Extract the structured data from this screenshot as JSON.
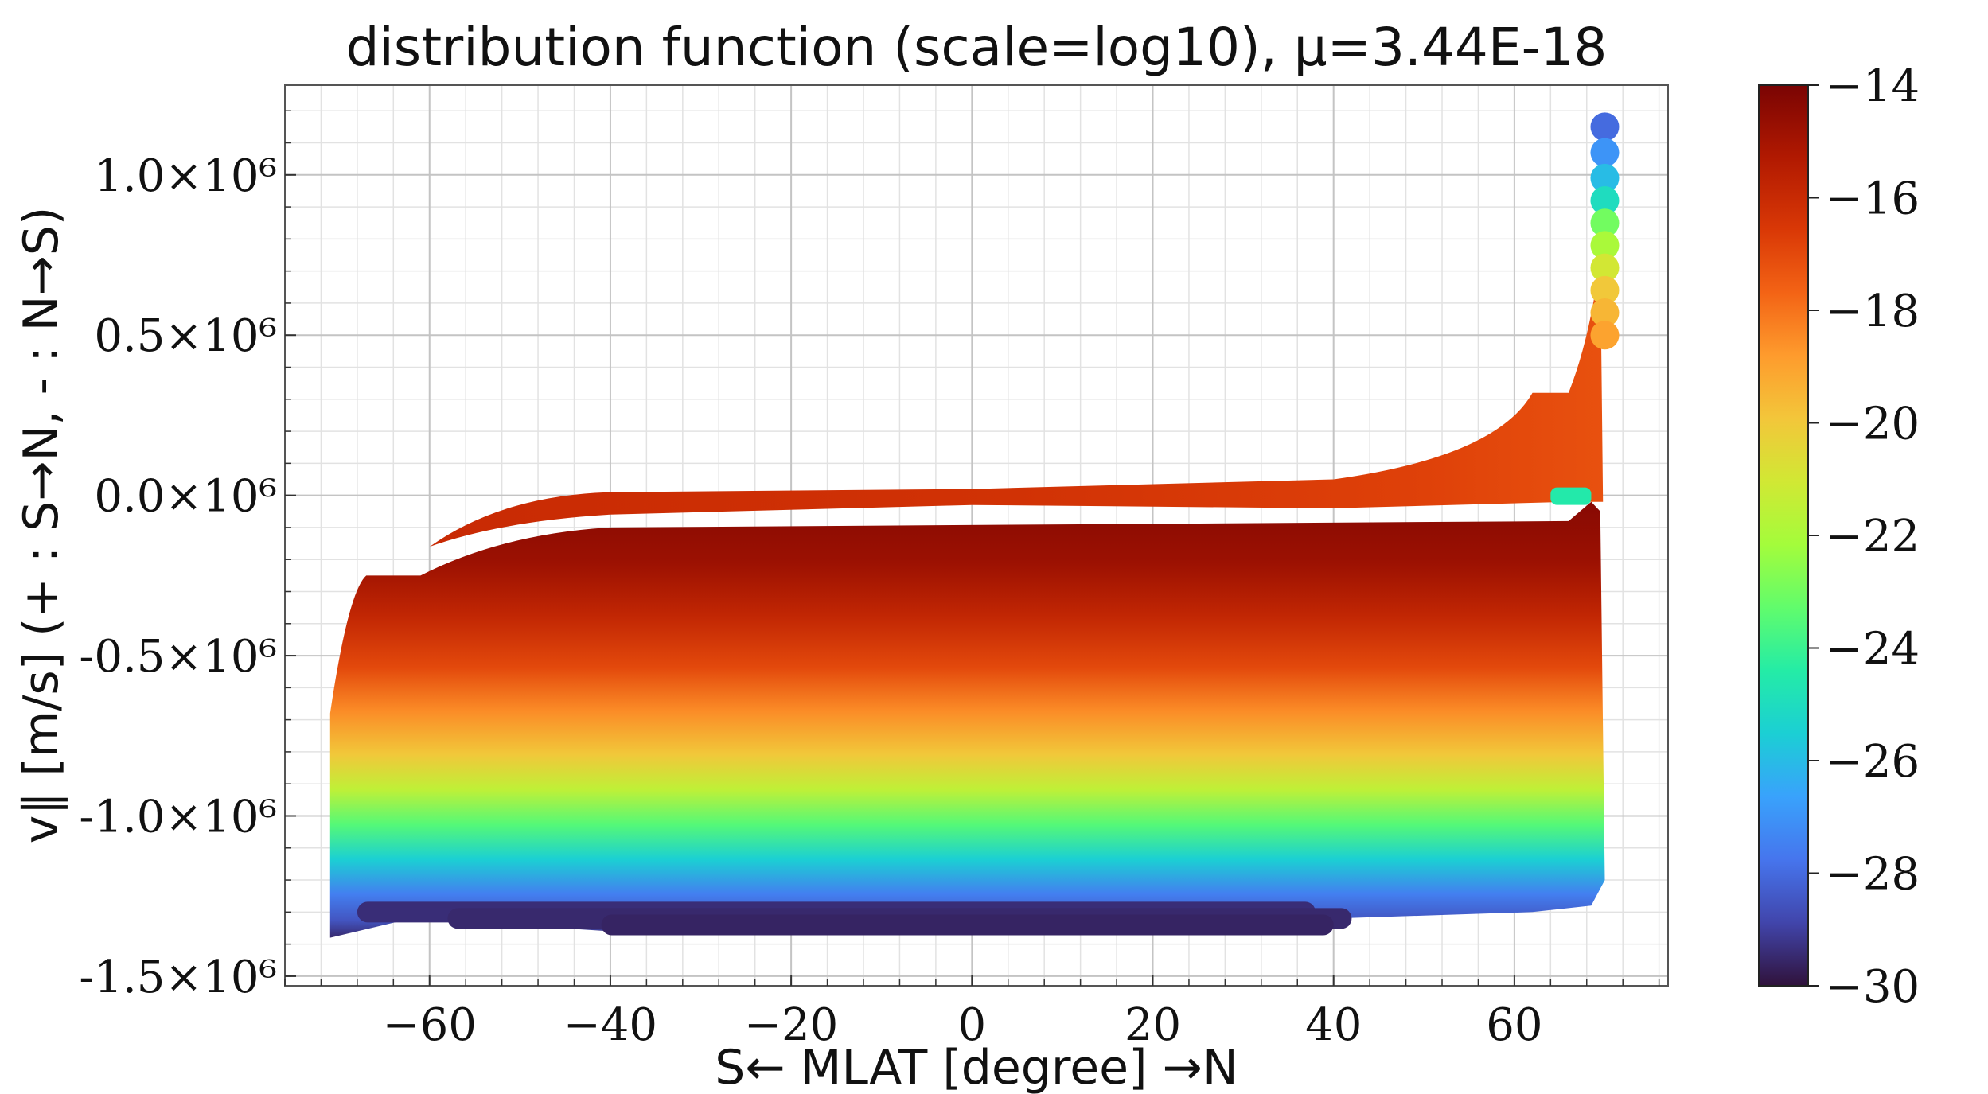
{
  "chart_data": {
    "type": "scatter",
    "title": "distribution function (scale=log10), μ=3.44E-18",
    "xlabel": "S← MLAT [degree] →N",
    "ylabel": "v∥ [m/s] (+ : S→N, - : N→S)",
    "xlim": [
      -76,
      77
    ],
    "ylim": [
      -1.53,
      1.28
    ],
    "y_unit_suffix": "×10⁶",
    "x_ticks": [
      -60,
      -40,
      -20,
      0,
      20,
      40,
      60
    ],
    "x_tick_labels": [
      "−60",
      "−40",
      "−20",
      "0",
      "20",
      "40",
      "60"
    ],
    "y_ticks": [
      -1.5,
      -1.0,
      -0.5,
      0.0,
      0.5,
      1.0
    ],
    "y_tick_labels": [
      "-1.5×10⁶",
      "-1.0×10⁶",
      "-0.5×10⁶",
      "0.0×10⁶",
      "0.5×10⁶",
      "1.0×10⁶"
    ],
    "grid": true,
    "colorbar": {
      "label": "",
      "range": [
        -30,
        -14
      ],
      "ticks": [
        -14,
        -16,
        -18,
        -20,
        -22,
        -24,
        -26,
        -28,
        -30
      ],
      "tick_labels": [
        "−14",
        "−16",
        "−18",
        "−20",
        "−22",
        "−24",
        "−26",
        "−28",
        "−30"
      ],
      "colormap": "turbo"
    },
    "region": {
      "description_values": {
        "mlat_range": [
          -71,
          70
        ],
        "v_min_band": -1.35,
        "v_max_lower_band": -0.1,
        "upper_band_top_at_zero": 0.02,
        "max_f": -14.2,
        "min_f": -29.5
      },
      "tail_points": [
        {
          "mlat": 70,
          "v": 1.15,
          "f": -28
        },
        {
          "mlat": 70,
          "v": 1.07,
          "f": -27
        },
        {
          "mlat": 70,
          "v": 0.99,
          "f": -26
        },
        {
          "mlat": 70,
          "v": 0.92,
          "f": -25
        },
        {
          "mlat": 70,
          "v": 0.85,
          "f": -23
        },
        {
          "mlat": 70,
          "v": 0.78,
          "f": -22
        },
        {
          "mlat": 70,
          "v": 0.71,
          "f": -21
        },
        {
          "mlat": 70,
          "v": 0.64,
          "f": -20
        },
        {
          "mlat": 70,
          "v": 0.57,
          "f": -19.5
        },
        {
          "mlat": 70,
          "v": 0.5,
          "f": -19
        }
      ]
    }
  }
}
